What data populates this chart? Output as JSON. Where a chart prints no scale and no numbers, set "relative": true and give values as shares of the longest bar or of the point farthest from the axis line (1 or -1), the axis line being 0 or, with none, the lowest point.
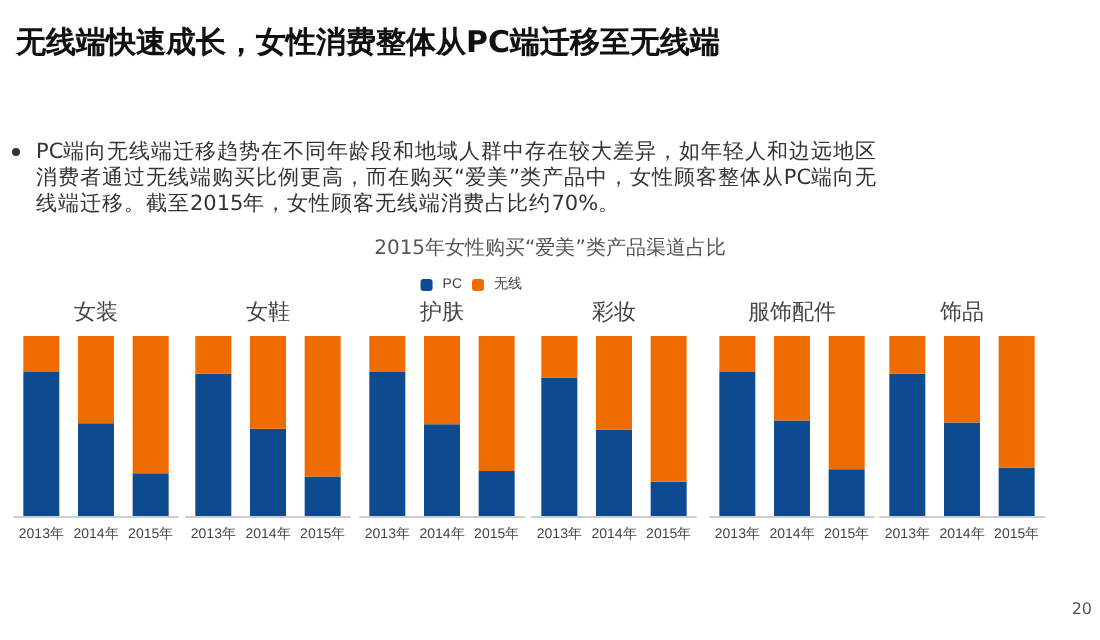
{
  "chart_data": [
    {
      "type": "other",
      "title": "无线端快速成长，女性消费整体从PC端迁移至无线端",
      "subtitle": "PC端向无线端迁移趋势在不同年龄段和地域人群中存在较大差异，如年轻人和边远地区消费者通过无线端购买比例更高，而在购买“爱美”类产品中，女性顾客整体从PC端向无线端迁移。截至2015年，女性顾客无线端消费占比约70%。",
      "annotations": [
        "2015年女性购买“爱美”类产品渠道占比",
        "20"
      ]
    },
    {
      "type": "bar",
      "title": "女装",
      "categories": [
        "2013年",
        "2014年",
        "2015年"
      ],
      "stacked": true,
      "relative": true,
      "legend": false,
      "series": [
        {
          "color": "#0d4a8f",
          "values": [
            0.8,
            0.515,
            0.237
          ]
        },
        {
          "color": "#ef6c00",
          "values": [
            0.2,
            0.485,
            0.763
          ]
        }
      ]
    },
    {
      "type": "bar",
      "title": "女鞋",
      "categories": [
        "2013年",
        "2014年",
        "2015年"
      ],
      "stacked": true,
      "relative": true,
      "legend": false,
      "series": [
        {
          "color": "#0d4a8f",
          "values": [
            0.79,
            0.485,
            0.22
          ]
        },
        {
          "color": "#ef6c00",
          "values": [
            0.21,
            0.515,
            0.78
          ]
        }
      ]
    },
    {
      "type": "bar",
      "title": "护肤",
      "categories": [
        "2013年",
        "2014年",
        "2015年"
      ],
      "stacked": true,
      "relative": true,
      "legend": "top right",
      "series": [
        {
          "name": "PC",
          "color": "#0d4a8f",
          "values": [
            0.8,
            0.51,
            0.25
          ]
        },
        {
          "name": "无线",
          "color": "#ef6c00",
          "values": [
            0.2,
            0.49,
            0.75
          ]
        }
      ]
    },
    {
      "type": "bar",
      "title": "彩妆",
      "categories": [
        "2013年",
        "2014年",
        "2015年"
      ],
      "stacked": true,
      "relative": true,
      "legend": false,
      "series": [
        {
          "color": "#0d4a8f",
          "values": [
            0.77,
            0.48,
            0.19
          ]
        },
        {
          "color": "#ef6c00",
          "values": [
            0.23,
            0.52,
            0.81
          ]
        }
      ]
    },
    {
      "type": "bar",
      "title": "服饰配件",
      "categories": [
        "2013年",
        "2014年",
        "2015年"
      ],
      "stacked": true,
      "relative": true,
      "legend": false,
      "series": [
        {
          "color": "#0d4a8f",
          "values": [
            0.8,
            0.53,
            0.26
          ]
        },
        {
          "color": "#ef6c00",
          "values": [
            0.2,
            0.47,
            0.74
          ]
        }
      ]
    },
    {
      "type": "bar",
      "title": "饰品",
      "categories": [
        "2013年",
        "2014年",
        "2015年"
      ],
      "stacked": true,
      "relative": true,
      "legend": false,
      "series": [
        {
          "color": "#0d4a8f",
          "values": [
            0.79,
            0.52,
            0.27
          ]
        },
        {
          "color": "#ef6c00",
          "values": [
            0.21,
            0.48,
            0.73
          ]
        }
      ]
    }
  ]
}
